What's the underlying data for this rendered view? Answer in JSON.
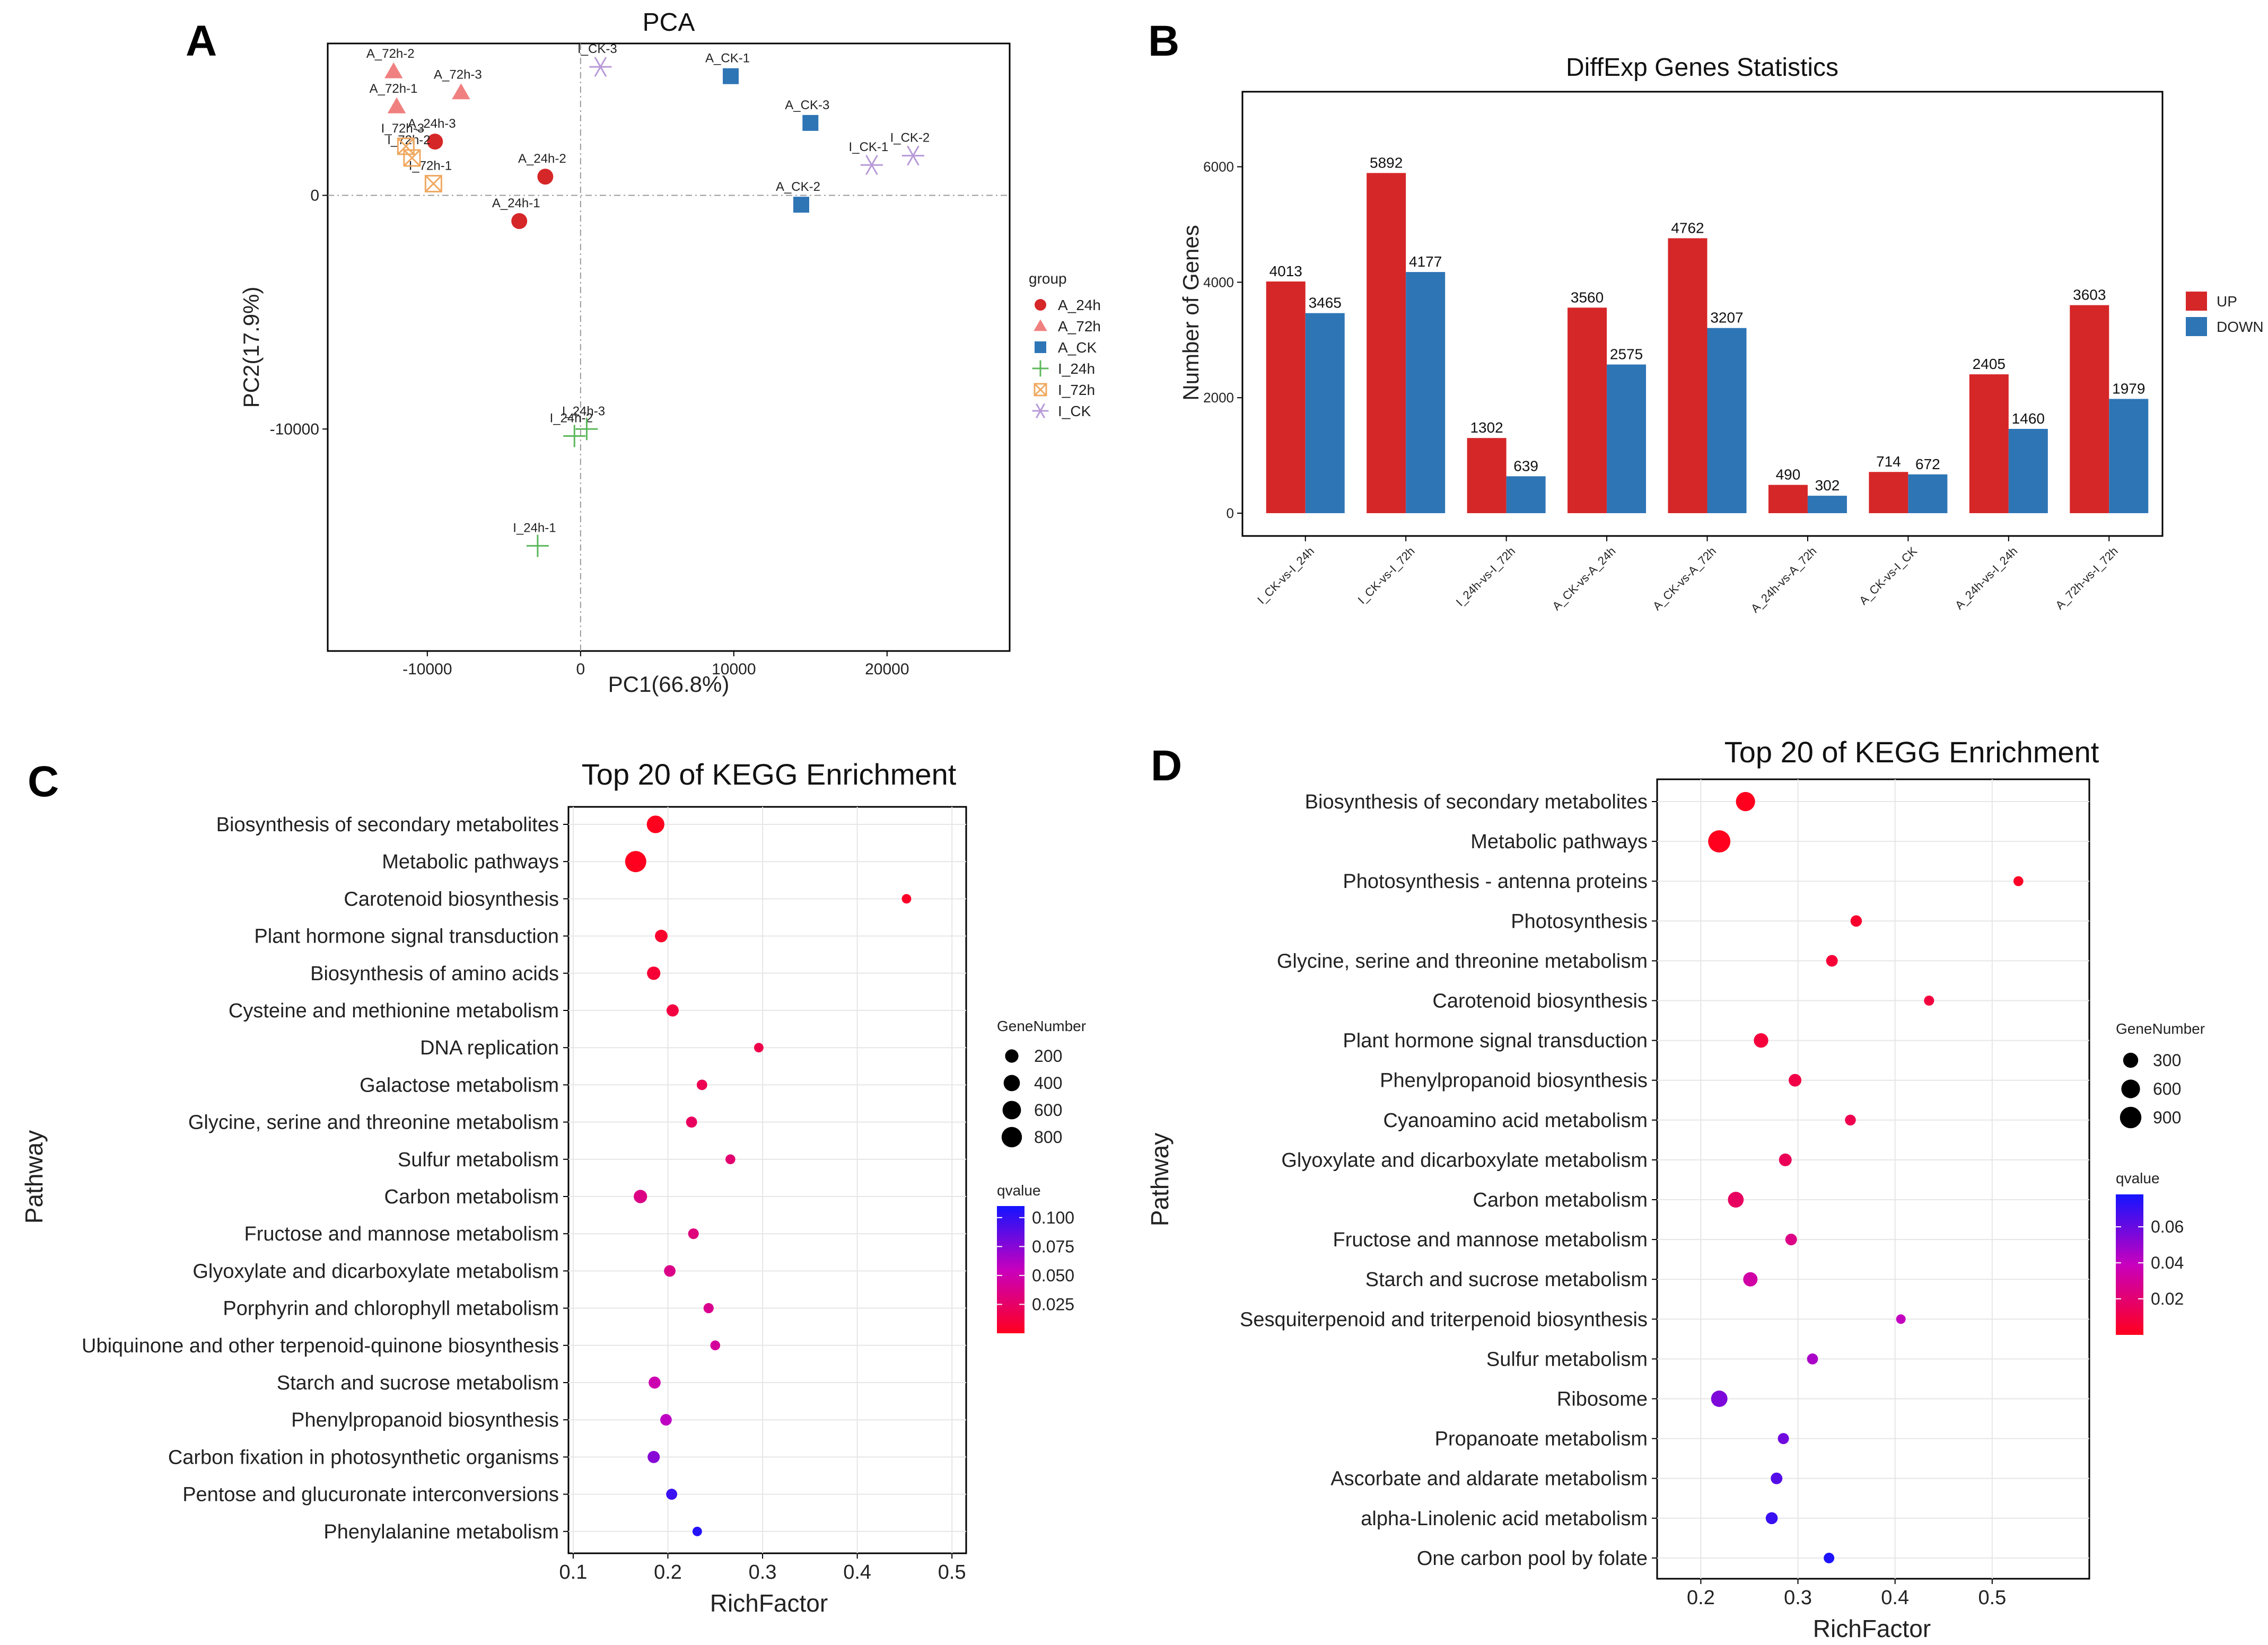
{
  "chart_data": [
    {
      "panel": "A",
      "type": "scatter",
      "title": "PCA",
      "xlabel": "PC1(66.8%)",
      "ylabel": "PC2(17.9%)",
      "xlim": [
        -16500,
        28000
      ],
      "ylim": [
        -19500,
        6500
      ],
      "xticks": [
        -10000,
        0,
        10000,
        20000
      ],
      "xtick_labels": [
        "-10000",
        "0",
        "10000",
        "20000"
      ],
      "yticks": [
        0,
        -10000
      ],
      "ytick_labels": [
        "0",
        "-10000"
      ],
      "legend_title": "group",
      "groups": [
        {
          "name": "A_24h",
          "marker": "circle",
          "color": "#d62728"
        },
        {
          "name": "A_72h",
          "marker": "triangle",
          "color": "#f08080"
        },
        {
          "name": "A_CK",
          "marker": "square",
          "color": "#2e75b6"
        },
        {
          "name": "I_24h",
          "marker": "plus",
          "color": "#5cb85c"
        },
        {
          "name": "I_72h",
          "marker": "boxx",
          "color": "#f0a860"
        },
        {
          "name": "I_CK",
          "marker": "star",
          "color": "#b89ad8"
        }
      ],
      "points": [
        {
          "label": "A_24h-1",
          "group": "A_24h",
          "x": -4000,
          "y": -1100
        },
        {
          "label": "A_24h-2",
          "group": "A_24h",
          "x": -2300,
          "y": 800
        },
        {
          "label": "A_24h-3",
          "group": "A_24h",
          "x": -9500,
          "y": 2300
        },
        {
          "label": "A_72h-1",
          "group": "A_72h",
          "x": -12000,
          "y": 3800
        },
        {
          "label": "A_72h-2",
          "group": "A_72h",
          "x": -12200,
          "y": 5300
        },
        {
          "label": "A_72h-3",
          "group": "A_72h",
          "x": -7800,
          "y": 4400
        },
        {
          "label": "A_CK-1",
          "group": "A_CK",
          "x": 9800,
          "y": 5100
        },
        {
          "label": "A_CK-2",
          "group": "A_CK",
          "x": 14400,
          "y": -400
        },
        {
          "label": "A_CK-3",
          "group": "A_CK",
          "x": 15000,
          "y": 3100
        },
        {
          "label": "I_24h-1",
          "group": "I_24h",
          "x": -2800,
          "y": -15000
        },
        {
          "label": "I_24h-2",
          "group": "I_24h",
          "x": -400,
          "y": -10300
        },
        {
          "label": "I_24h-3",
          "group": "I_24h",
          "x": 400,
          "y": -10000
        },
        {
          "label": "I_72h-1",
          "group": "I_72h",
          "x": -9600,
          "y": 500
        },
        {
          "label": "I_72h-2",
          "group": "I_72h",
          "x": -11000,
          "y": 1600
        },
        {
          "label": "I_72h-3",
          "group": "I_72h",
          "x": -11400,
          "y": 2100
        },
        {
          "label": "I_CK-1",
          "group": "I_CK",
          "x": 19000,
          "y": 1300
        },
        {
          "label": "I_CK-2",
          "group": "I_CK",
          "x": 21700,
          "y": 1700
        },
        {
          "label": "I_CK-3",
          "group": "I_CK",
          "x": 1300,
          "y": 5500
        }
      ]
    },
    {
      "panel": "B",
      "type": "bar",
      "title": "DiffExp Genes Statistics",
      "xlabel": "",
      "ylabel": "Number of Genes",
      "ylim": [
        0,
        7300
      ],
      "yticks": [
        0,
        2000,
        4000,
        6000
      ],
      "ytick_labels": [
        "0",
        "2000",
        "4000",
        "6000"
      ],
      "categories": [
        "I_CK-vs-I_24h",
        "I_CK-vs-I_72h",
        "I_24h-vs-I_72h",
        "A_CK-vs-A_24h",
        "A_CK-vs-A_72h",
        "A_24h-vs-A_72h",
        "A_CK-vs-I_CK",
        "A_24h-vs-I_24h",
        "A_72h-vs-I_72h"
      ],
      "series": [
        {
          "name": "UP",
          "color": "#d62728",
          "values": [
            4013,
            5892,
            1302,
            3560,
            4762,
            490,
            714,
            2405,
            3603
          ],
          "labels": [
            "4013",
            "5892",
            "1302",
            "3560",
            "4762",
            "490",
            "714",
            "2405",
            "3603"
          ]
        },
        {
          "name": "DOWN",
          "color": "#2e75b6",
          "values": [
            3465,
            4177,
            639,
            2575,
            3207,
            302,
            672,
            1460,
            1979
          ],
          "labels": [
            "3465",
            "4177",
            "639",
            "2575",
            "3207",
            "302",
            "672",
            "1460",
            "1979"
          ]
        }
      ]
    },
    {
      "panel": "C",
      "type": "scatter",
      "title": "Top 20 of KEGG Enrichment",
      "xlabel": "RichFactor",
      "ylabel": "Pathway",
      "xlim": [
        0.095,
        0.515
      ],
      "xticks": [
        0.1,
        0.2,
        0.3,
        0.4,
        0.5
      ],
      "xtick_labels": [
        "0.1",
        "0.2",
        "0.3",
        "0.4",
        "0.5"
      ],
      "size_legend": {
        "title": "GeneNumber",
        "values": [
          200,
          400,
          600,
          800
        ],
        "labels": [
          "200",
          "400",
          "600",
          "800"
        ]
      },
      "color_legend": {
        "title": "qvalue",
        "min": 0.0,
        "max": 0.11,
        "ticks": [
          0.1,
          0.075,
          0.05,
          0.025
        ],
        "tick_labels": [
          "0.100",
          "0.075",
          "0.050",
          "0.025"
        ]
      },
      "pathways": [
        {
          "name": "Biosynthesis of secondary metabolites",
          "rich": 0.187,
          "genes": 520,
          "q": 0.0
        },
        {
          "name": "Metabolic pathways",
          "rich": 0.166,
          "genes": 900,
          "q": 0.0
        },
        {
          "name": "Carotenoid biosynthesis",
          "rich": 0.452,
          "genes": 40,
          "q": 0.003
        },
        {
          "name": "Plant hormone signal transduction",
          "rich": 0.193,
          "genes": 160,
          "q": 0.005
        },
        {
          "name": "Biosynthesis of amino acids",
          "rich": 0.185,
          "genes": 200,
          "q": 0.008
        },
        {
          "name": "Cysteine and methionine metabolism",
          "rich": 0.205,
          "genes": 140,
          "q": 0.012
        },
        {
          "name": "DNA replication",
          "rich": 0.296,
          "genes": 40,
          "q": 0.015
        },
        {
          "name": "Galactose metabolism",
          "rich": 0.236,
          "genes": 70,
          "q": 0.018
        },
        {
          "name": "Glycine, serine and threonine metabolism",
          "rich": 0.225,
          "genes": 90,
          "q": 0.022
        },
        {
          "name": "Sulfur metabolism",
          "rich": 0.266,
          "genes": 50,
          "q": 0.028
        },
        {
          "name": "Carbon metabolism",
          "rich": 0.171,
          "genes": 200,
          "q": 0.035
        },
        {
          "name": "Fructose and mannose metabolism",
          "rich": 0.227,
          "genes": 75,
          "q": 0.032
        },
        {
          "name": "Glyoxylate and dicarboxylate metabolism",
          "rich": 0.202,
          "genes": 110,
          "q": 0.036
        },
        {
          "name": "Porphyrin and chlorophyll metabolism",
          "rich": 0.243,
          "genes": 60,
          "q": 0.038
        },
        {
          "name": "Ubiquinone and other terpenoid-quinone biosynthesis",
          "rich": 0.25,
          "genes": 50,
          "q": 0.043
        },
        {
          "name": "Starch and sucrose metabolism",
          "rich": 0.186,
          "genes": 130,
          "q": 0.05
        },
        {
          "name": "Phenylpropanoid biosynthesis",
          "rich": 0.198,
          "genes": 110,
          "q": 0.058
        },
        {
          "name": "Carbon fixation in photosynthetic organisms",
          "rich": 0.185,
          "genes": 140,
          "q": 0.075
        },
        {
          "name": "Pentose and glucuronate interconversions",
          "rich": 0.204,
          "genes": 90,
          "q": 0.098
        },
        {
          "name": "Phenylalanine metabolism",
          "rich": 0.231,
          "genes": 40,
          "q": 0.105
        }
      ]
    },
    {
      "panel": "D",
      "type": "scatter",
      "title": "Top 20 of KEGG Enrichment",
      "xlabel": "RichFactor",
      "ylabel": "Pathway",
      "xlim": [
        0.155,
        0.6
      ],
      "xticks": [
        0.2,
        0.3,
        0.4,
        0.5
      ],
      "xtick_labels": [
        "0.2",
        "0.3",
        "0.4",
        "0.5"
      ],
      "size_legend": {
        "title": "GeneNumber",
        "values": [
          300,
          600,
          900
        ],
        "labels": [
          "300",
          "600",
          "900"
        ]
      },
      "color_legend": {
        "title": "qvalue",
        "min": 0.0,
        "max": 0.078,
        "ticks": [
          0.06,
          0.04,
          0.02
        ],
        "tick_labels": [
          "0.06",
          "0.04",
          "0.02"
        ]
      },
      "pathways": [
        {
          "name": "Biosynthesis of secondary metabolites",
          "rich": 0.246,
          "genes": 650,
          "q": 0.0
        },
        {
          "name": "Metabolic pathways",
          "rich": 0.219,
          "genes": 1000,
          "q": 0.0
        },
        {
          "name": "Photosynthesis - antenna proteins",
          "rich": 0.527,
          "genes": 50,
          "q": 0.002
        },
        {
          "name": "Photosynthesis",
          "rich": 0.36,
          "genes": 100,
          "q": 0.004
        },
        {
          "name": "Glycine, serine and threonine metabolism",
          "rich": 0.335,
          "genes": 110,
          "q": 0.006
        },
        {
          "name": "Carotenoid biosynthesis",
          "rich": 0.435,
          "genes": 55,
          "q": 0.008
        },
        {
          "name": "Plant hormone signal transduction",
          "rich": 0.262,
          "genes": 260,
          "q": 0.007
        },
        {
          "name": "Phenylpropanoid biosynthesis",
          "rich": 0.297,
          "genes": 160,
          "q": 0.01
        },
        {
          "name": "Cyanoamino acid metabolism",
          "rich": 0.354,
          "genes": 80,
          "q": 0.012
        },
        {
          "name": "Glyoxylate and dicarboxylate metabolism",
          "rich": 0.287,
          "genes": 160,
          "q": 0.014
        },
        {
          "name": "Carbon metabolism",
          "rich": 0.236,
          "genes": 350,
          "q": 0.016
        },
        {
          "name": "Fructose and mannose metabolism",
          "rich": 0.293,
          "genes": 110,
          "q": 0.025
        },
        {
          "name": "Starch and sucrose metabolism",
          "rich": 0.251,
          "genes": 250,
          "q": 0.033
        },
        {
          "name": "Sesquiterpenoid and triterpenoid biosynthesis",
          "rich": 0.406,
          "genes": 40,
          "q": 0.04
        },
        {
          "name": "Sulfur metabolism",
          "rich": 0.315,
          "genes": 85,
          "q": 0.045
        },
        {
          "name": "Ribosome",
          "rich": 0.219,
          "genes": 400,
          "q": 0.055
        },
        {
          "name": "Propanoate metabolism",
          "rich": 0.285,
          "genes": 90,
          "q": 0.058
        },
        {
          "name": "Ascorbate and aldarate metabolism",
          "rich": 0.278,
          "genes": 110,
          "q": 0.064
        },
        {
          "name": "alpha-Linolenic acid metabolism",
          "rich": 0.273,
          "genes": 125,
          "q": 0.07
        },
        {
          "name": "One carbon pool by folate",
          "rich": 0.332,
          "genes": 70,
          "q": 0.076
        }
      ]
    }
  ]
}
